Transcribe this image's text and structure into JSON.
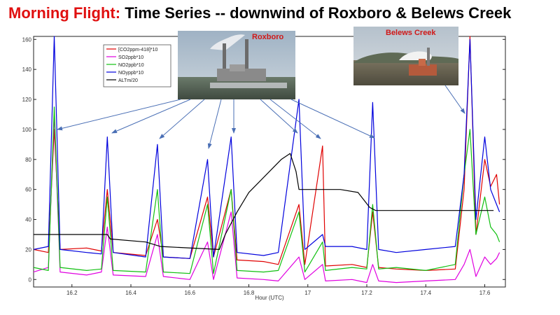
{
  "title": {
    "highlight": "Morning Flight:",
    "rest": "Time Series -- downwind of Roxboro & Belews Creek"
  },
  "photos": {
    "roxboro": "Roxboro",
    "belews": "Belews Creek"
  },
  "chart_data": {
    "type": "line",
    "xlabel": "Hour (UTC)",
    "ylabel": "",
    "xlim": [
      16.07,
      17.67
    ],
    "ylim": [
      -5,
      162
    ],
    "xticks": [
      16.2,
      16.4,
      16.6,
      16.8,
      17,
      17.2,
      17.4,
      17.6
    ],
    "xtick_labels": [
      "16.2",
      "16.4",
      "16.6",
      "16.8",
      "17",
      "17.2",
      "17.4",
      "17.6"
    ],
    "yticks": [
      0,
      20,
      40,
      60,
      80,
      100,
      120,
      140,
      160
    ],
    "ytick_labels": [
      "0",
      "20",
      "40",
      "60",
      "80",
      "100",
      "120",
      "140",
      "160"
    ],
    "legend_position": "top-left",
    "series": [
      {
        "name": "[CO2ppm-418]*10",
        "color": "#e00000",
        "points": [
          [
            16.07,
            20
          ],
          [
            16.12,
            18
          ],
          [
            16.14,
            100
          ],
          [
            16.16,
            20
          ],
          [
            16.25,
            21
          ],
          [
            16.3,
            19
          ],
          [
            16.32,
            60
          ],
          [
            16.34,
            18
          ],
          [
            16.45,
            16
          ],
          [
            16.49,
            40
          ],
          [
            16.51,
            15
          ],
          [
            16.6,
            14
          ],
          [
            16.66,
            55
          ],
          [
            16.68,
            15
          ],
          [
            16.74,
            60
          ],
          [
            16.76,
            13
          ],
          [
            16.85,
            12
          ],
          [
            16.9,
            10
          ],
          [
            16.97,
            50
          ],
          [
            16.99,
            10
          ],
          [
            17.05,
            89
          ],
          [
            17.06,
            9
          ],
          [
            17.15,
            10
          ],
          [
            17.2,
            8
          ],
          [
            17.22,
            45
          ],
          [
            17.24,
            8
          ],
          [
            17.3,
            7
          ],
          [
            17.4,
            6
          ],
          [
            17.5,
            7
          ],
          [
            17.53,
            60
          ],
          [
            17.55,
            165
          ],
          [
            17.57,
            30
          ],
          [
            17.6,
            80
          ],
          [
            17.62,
            62
          ],
          [
            17.64,
            70
          ],
          [
            17.65,
            50
          ]
        ]
      },
      {
        "name": "SO2ppb*10",
        "color": "#e000e0",
        "points": [
          [
            16.07,
            5
          ],
          [
            16.12,
            8
          ],
          [
            16.14,
            110
          ],
          [
            16.16,
            5
          ],
          [
            16.25,
            3
          ],
          [
            16.3,
            5
          ],
          [
            16.32,
            35
          ],
          [
            16.34,
            3
          ],
          [
            16.45,
            2
          ],
          [
            16.49,
            30
          ],
          [
            16.51,
            2
          ],
          [
            16.6,
            0
          ],
          [
            16.66,
            25
          ],
          [
            16.68,
            0
          ],
          [
            16.74,
            45
          ],
          [
            16.76,
            1
          ],
          [
            16.85,
            0
          ],
          [
            16.9,
            -1
          ],
          [
            16.97,
            15
          ],
          [
            16.99,
            0
          ],
          [
            17.05,
            10
          ],
          [
            17.06,
            -1
          ],
          [
            17.15,
            0
          ],
          [
            17.2,
            -2
          ],
          [
            17.22,
            10
          ],
          [
            17.24,
            -1
          ],
          [
            17.3,
            -2
          ],
          [
            17.4,
            -1
          ],
          [
            17.5,
            0
          ],
          [
            17.53,
            10
          ],
          [
            17.55,
            20
          ],
          [
            17.57,
            2
          ],
          [
            17.6,
            15
          ],
          [
            17.62,
            10
          ],
          [
            17.64,
            14
          ],
          [
            17.65,
            18
          ]
        ]
      },
      {
        "name": "NO2ppb*10",
        "color": "#10c010",
        "points": [
          [
            16.07,
            8
          ],
          [
            16.12,
            6
          ],
          [
            16.14,
            115
          ],
          [
            16.16,
            8
          ],
          [
            16.25,
            6
          ],
          [
            16.3,
            7
          ],
          [
            16.32,
            55
          ],
          [
            16.34,
            6
          ],
          [
            16.45,
            5
          ],
          [
            16.49,
            60
          ],
          [
            16.51,
            5
          ],
          [
            16.6,
            4
          ],
          [
            16.66,
            50
          ],
          [
            16.68,
            4
          ],
          [
            16.74,
            60
          ],
          [
            16.76,
            6
          ],
          [
            16.85,
            5
          ],
          [
            16.9,
            6
          ],
          [
            16.97,
            45
          ],
          [
            16.99,
            5
          ],
          [
            17.05,
            25
          ],
          [
            17.06,
            6
          ],
          [
            17.15,
            8
          ],
          [
            17.2,
            7
          ],
          [
            17.22,
            50
          ],
          [
            17.24,
            7
          ],
          [
            17.3,
            8
          ],
          [
            17.4,
            6
          ],
          [
            17.5,
            10
          ],
          [
            17.53,
            70
          ],
          [
            17.55,
            100
          ],
          [
            17.57,
            30
          ],
          [
            17.6,
            55
          ],
          [
            17.62,
            35
          ],
          [
            17.64,
            30
          ],
          [
            17.65,
            25
          ]
        ]
      },
      {
        "name": "NOyppb*10",
        "color": "#0000dd",
        "points": [
          [
            16.07,
            20
          ],
          [
            16.12,
            22
          ],
          [
            16.14,
            165
          ],
          [
            16.16,
            20
          ],
          [
            16.25,
            18
          ],
          [
            16.3,
            17
          ],
          [
            16.32,
            95
          ],
          [
            16.34,
            18
          ],
          [
            16.45,
            15
          ],
          [
            16.49,
            90
          ],
          [
            16.51,
            15
          ],
          [
            16.6,
            14
          ],
          [
            16.66,
            80
          ],
          [
            16.68,
            15
          ],
          [
            16.74,
            95
          ],
          [
            16.76,
            18
          ],
          [
            16.85,
            16
          ],
          [
            16.9,
            18
          ],
          [
            16.97,
            120
          ],
          [
            16.99,
            20
          ],
          [
            17.05,
            30
          ],
          [
            17.06,
            22
          ],
          [
            17.15,
            22
          ],
          [
            17.2,
            20
          ],
          [
            17.22,
            118
          ],
          [
            17.24,
            20
          ],
          [
            17.3,
            18
          ],
          [
            17.4,
            20
          ],
          [
            17.5,
            22
          ],
          [
            17.53,
            70
          ],
          [
            17.55,
            160
          ],
          [
            17.57,
            40
          ],
          [
            17.6,
            95
          ],
          [
            17.62,
            60
          ],
          [
            17.64,
            50
          ],
          [
            17.65,
            45
          ]
        ]
      },
      {
        "name": "ALTm/20",
        "color": "#000000",
        "points": [
          [
            16.07,
            30
          ],
          [
            16.32,
            30
          ],
          [
            16.33,
            27
          ],
          [
            16.45,
            25
          ],
          [
            16.5,
            22
          ],
          [
            16.7,
            20
          ],
          [
            16.72,
            30
          ],
          [
            16.76,
            45
          ],
          [
            16.8,
            58
          ],
          [
            16.86,
            70
          ],
          [
            16.91,
            80
          ],
          [
            16.94,
            84
          ],
          [
            16.96,
            72
          ],
          [
            16.97,
            60
          ],
          [
            17.11,
            60
          ],
          [
            17.17,
            58
          ],
          [
            17.21,
            48
          ],
          [
            17.23,
            46
          ],
          [
            17.63,
            46
          ]
        ]
      }
    ]
  }
}
